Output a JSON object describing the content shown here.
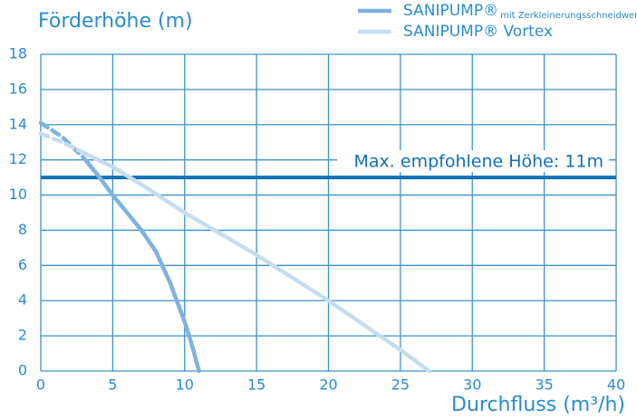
{
  "chart_data": {
    "type": "line",
    "title": "Förderhöhe (m)",
    "x_label": "Durchfluss (m³/h)",
    "xlim": [
      0,
      40
    ],
    "xticks": [
      0,
      5,
      10,
      15,
      20,
      25,
      30,
      35,
      40
    ],
    "ylim": [
      0,
      18
    ],
    "yticks": [
      0,
      2,
      4,
      6,
      8,
      10,
      12,
      14,
      16,
      18
    ],
    "grid": true,
    "grid_color": "#3b93cf",
    "text_color": "#2a8ccc",
    "legend": "top-right",
    "series": [
      {
        "name": "SANIPUMP®",
        "name_note": "mit Zerkleinerungsschneidwerk",
        "color": "#80b2df",
        "dashed_to": 3,
        "x": [
          0,
          1.5,
          3,
          4,
          5,
          6,
          7,
          8,
          9,
          10,
          10.5,
          11
        ],
        "values": [
          14.1,
          13.3,
          12.1,
          11.1,
          10,
          9,
          8,
          6.8,
          5,
          2.8,
          1.5,
          0
        ]
      },
      {
        "name": "SANIPUMP® Vortex",
        "color": "#c6ddf1",
        "dashed_to": 3,
        "x": [
          0,
          1.5,
          3,
          5,
          7,
          10,
          15,
          20,
          25,
          27
        ],
        "values": [
          13.5,
          13,
          12.4,
          11.6,
          10.6,
          9,
          6.6,
          4,
          1.2,
          0
        ]
      }
    ],
    "hline": {
      "value": 11,
      "label": "Max. empfohlene Höhe: 11m",
      "color": "#1170b8"
    }
  }
}
